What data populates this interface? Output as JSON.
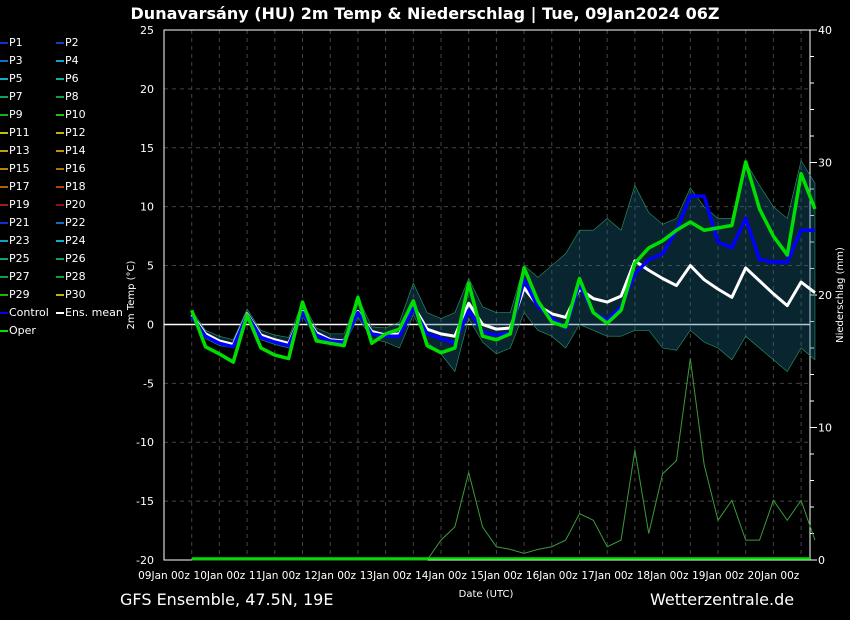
{
  "title": "Dunavarsány  (HU)  2m Temp & Niederschlag | Tue, 09Jan2024 06Z",
  "footer_left": "GFS Ensemble, 47.5N, 19E",
  "footer_right": "Wetterzentrale.de",
  "legend": [
    {
      "label": "P1",
      "color": "#1030d0"
    },
    {
      "label": "P2",
      "color": "#1040c0"
    },
    {
      "label": "P3",
      "color": "#1070c0"
    },
    {
      "label": "P4",
      "color": "#10a0c8"
    },
    {
      "label": "P5",
      "color": "#10b0c0"
    },
    {
      "label": "P6",
      "color": "#10b0a0"
    },
    {
      "label": "P7",
      "color": "#10a060"
    },
    {
      "label": "P8",
      "color": "#10a040"
    },
    {
      "label": "P9",
      "color": "#10b020"
    },
    {
      "label": "P10",
      "color": "#20c010"
    },
    {
      "label": "P11",
      "color": "#c0c010"
    },
    {
      "label": "P12",
      "color": "#c0b010"
    },
    {
      "label": "P13",
      "color": "#c0a010"
    },
    {
      "label": "P14",
      "color": "#c09010"
    },
    {
      "label": "P15",
      "color": "#c08010"
    },
    {
      "label": "P16",
      "color": "#b07010"
    },
    {
      "label": "P17",
      "color": "#b06010"
    },
    {
      "label": "P18",
      "color": "#b04010"
    },
    {
      "label": "P19",
      "color": "#a02010"
    },
    {
      "label": "P20",
      "color": "#901010"
    },
    {
      "label": "P21",
      "color": "#1030d0"
    },
    {
      "label": "P22",
      "color": "#1070c0"
    },
    {
      "label": "P23",
      "color": "#10a0c8"
    },
    {
      "label": "P24",
      "color": "#10b0c0"
    },
    {
      "label": "P25",
      "color": "#10a080"
    },
    {
      "label": "P26",
      "color": "#10a060"
    },
    {
      "label": "P27",
      "color": "#10a040"
    },
    {
      "label": "P28",
      "color": "#10a030"
    },
    {
      "label": "P29",
      "color": "#20b010"
    },
    {
      "label": "P30",
      "color": "#c0b010"
    },
    {
      "label": "Control",
      "color": "#0000ff"
    },
    {
      "label": "Ens. mean",
      "color": "#ffffff"
    },
    {
      "label": "Oper",
      "color": "#00e000"
    }
  ],
  "chart_data": {
    "type": "line",
    "xlabel": "Date (UTC)",
    "ylabel": "2m Temp (°C)",
    "y2label": "Niederschlag (mm)",
    "ylim": [
      -20,
      25
    ],
    "y2lim": [
      0,
      40
    ],
    "yticks": [
      "-20",
      "-15",
      "-10",
      "-5",
      "0",
      "5",
      "10",
      "15",
      "20",
      "25"
    ],
    "y2ticks": [
      "0",
      "10",
      "20",
      "30",
      "40"
    ],
    "xticks": [
      "09Jan 00z",
      "10Jan 00z",
      "11Jan 00z",
      "12Jan 00z",
      "13Jan 00z",
      "14Jan 00z",
      "15Jan 00z",
      "16Jan 00z",
      "17Jan 00z",
      "18Jan 00z",
      "19Jan 00z",
      "20Jan 00z"
    ],
    "x_start": "09Jan 12z",
    "x_step_hours": 6,
    "grid": true,
    "series": [
      {
        "name": "Ens. mean",
        "color": "#ffffff",
        "values": [
          0.8,
          -0.8,
          -1.4,
          -1.7,
          0.9,
          -0.9,
          -1.3,
          -1.6,
          1.1,
          -0.7,
          -1.3,
          -1.4,
          1.1,
          -0.6,
          -0.9,
          -0.8,
          1.6,
          -0.4,
          -0.8,
          -1.0,
          1.8,
          0.0,
          -0.4,
          -0.3,
          3.1,
          1.6,
          0.9,
          0.6,
          3.0,
          2.2,
          1.9,
          2.4,
          5.4,
          4.6,
          3.9,
          3.3,
          5.0,
          3.8,
          3.0,
          2.3,
          4.8,
          3.7,
          2.6,
          1.6,
          3.6,
          2.7
        ]
      },
      {
        "name": "Control",
        "color": "#0000ff",
        "values": [
          0.7,
          -1.0,
          -1.6,
          -1.9,
          0.8,
          -1.1,
          -1.5,
          -1.8,
          1.0,
          -0.9,
          -1.4,
          -1.5,
          1.0,
          -0.8,
          -1.0,
          -1.0,
          1.4,
          -0.8,
          -1.2,
          -1.6,
          1.2,
          -0.6,
          -0.9,
          -0.7,
          3.8,
          1.5,
          0.6,
          -0.3,
          3.4,
          1.0,
          0.4,
          1.5,
          4.3,
          5.5,
          6.0,
          8.0,
          10.9,
          10.9,
          7.0,
          6.5,
          9.0,
          5.5,
          5.3,
          5.3,
          8.0,
          8.0
        ]
      },
      {
        "name": "Oper",
        "color": "#00e000",
        "values": [
          1.2,
          -1.9,
          -2.5,
          -3.2,
          0.8,
          -2.0,
          -2.6,
          -2.9,
          1.9,
          -1.4,
          -1.6,
          -1.8,
          2.3,
          -1.6,
          -0.8,
          -0.4,
          2.0,
          -1.8,
          -2.4,
          -2.0,
          3.5,
          -1.0,
          -1.3,
          -0.8,
          4.8,
          2.0,
          0.2,
          -0.2,
          3.9,
          1.0,
          0.1,
          1.2,
          5.2,
          6.5,
          7.1,
          8.0,
          8.7,
          8.0,
          8.2,
          8.4,
          13.8,
          9.8,
          7.5,
          5.9,
          12.8,
          9.8
        ]
      }
    ],
    "ensemble_spread": {
      "min": [
        0.5,
        -1.2,
        -1.8,
        -2.0,
        0.5,
        -1.3,
        -1.7,
        -2.0,
        0.7,
        -1.2,
        -1.7,
        -1.8,
        0.6,
        -1.2,
        -1.5,
        -2.0,
        0.8,
        -1.5,
        -2.5,
        -4.0,
        0.5,
        -1.5,
        -2.5,
        -2.0,
        1.0,
        -0.5,
        -1.0,
        -2.0,
        0.0,
        -0.5,
        -1.0,
        -1.0,
        -0.5,
        -0.5,
        -2.0,
        -2.2,
        -0.5,
        -1.5,
        -2.0,
        -3.0,
        -1.0,
        -2.0,
        -3.0,
        -4.0,
        -2.0,
        -3.0
      ],
      "max": [
        1.2,
        -0.5,
        -1.0,
        -1.3,
        1.3,
        -0.5,
        -0.9,
        -1.1,
        1.9,
        -0.3,
        -0.8,
        -0.8,
        2.3,
        -0.2,
        -0.3,
        0.2,
        3.5,
        1.0,
        0.5,
        1.0,
        3.9,
        1.5,
        1.0,
        1.0,
        5.0,
        4.0,
        5.0,
        6.0,
        8.0,
        8.0,
        9.0,
        8.0,
        11.8,
        9.5,
        8.5,
        9.0,
        11.6,
        10.0,
        9.0,
        9.0,
        13.8,
        11.8,
        10.0,
        9.0,
        13.9,
        12.0
      ]
    },
    "precip_max": [
      0,
      0,
      0,
      0,
      0,
      0,
      0,
      0,
      0,
      0,
      0,
      0,
      0,
      0,
      0,
      0,
      0,
      0,
      1.5,
      2.5,
      6.6,
      2.5,
      1.0,
      0.8,
      0.5,
      0.8,
      1.0,
      1.5,
      3.5,
      3.0,
      1.0,
      1.5,
      8.3,
      2.0,
      6.5,
      7.5,
      15.2,
      7.2,
      3.0,
      4.5,
      1.5,
      1.5,
      4.5,
      3.0,
      4.5,
      1.5
    ]
  }
}
